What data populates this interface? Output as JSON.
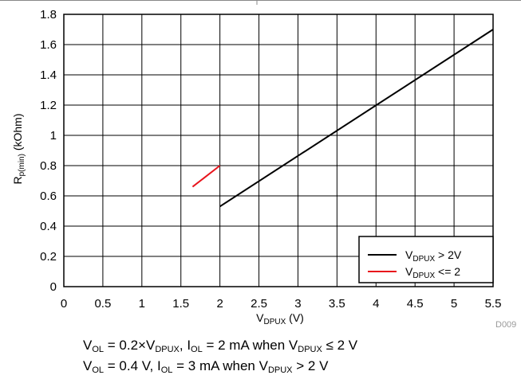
{
  "chart_data": {
    "type": "line",
    "title": "",
    "xlabel": {
      "main": "V",
      "sub": "DPUX",
      "tail": " (V)"
    },
    "ylabel": {
      "main": "R",
      "sub": "p(min)",
      "tail": " (kOhm)"
    },
    "xlim": [
      0,
      5.5
    ],
    "ylim": [
      0,
      1.8
    ],
    "x_ticks": [
      "0",
      "0.5",
      "1",
      "1.5",
      "2",
      "2.5",
      "3",
      "3.5",
      "4",
      "4.5",
      "5",
      "5.5"
    ],
    "y_ticks": [
      "0",
      "0.2",
      "0.4",
      "0.6",
      "0.8",
      "1",
      "1.2",
      "1.4",
      "1.6",
      "1.8"
    ],
    "grid": true,
    "legend_position": "bottom-right",
    "series": [
      {
        "legend": {
          "main": "V",
          "sub": "DPUX",
          "tail": " > 2V"
        },
        "color": "#000000",
        "x": [
          2.0,
          5.5
        ],
        "y": [
          0.53,
          1.7
        ]
      },
      {
        "legend": {
          "main": "V",
          "sub": "DPUX",
          "tail": " <= 2"
        },
        "color": "#e8141c",
        "x": [
          1.65,
          2.0
        ],
        "y": [
          0.66,
          0.8
        ]
      }
    ],
    "source_id": "D009"
  },
  "captions": [
    {
      "p1": "V",
      "s1": "OL",
      "p2": " = 0.2×V",
      "s2": "DPUX",
      "p3": ", I",
      "s3": "OL",
      "p4": " = 2 mA when V",
      "s4": "DPUX",
      "p5": " ≤ 2 V"
    },
    {
      "p1": "V",
      "s1": "OL",
      "p2": " = 0.4 V, I",
      "s2": "OL",
      "p3": " = 3 mA when V",
      "s3": "DPUX",
      "p4": " > 2 V",
      "s4": "",
      "p5": ""
    }
  ]
}
